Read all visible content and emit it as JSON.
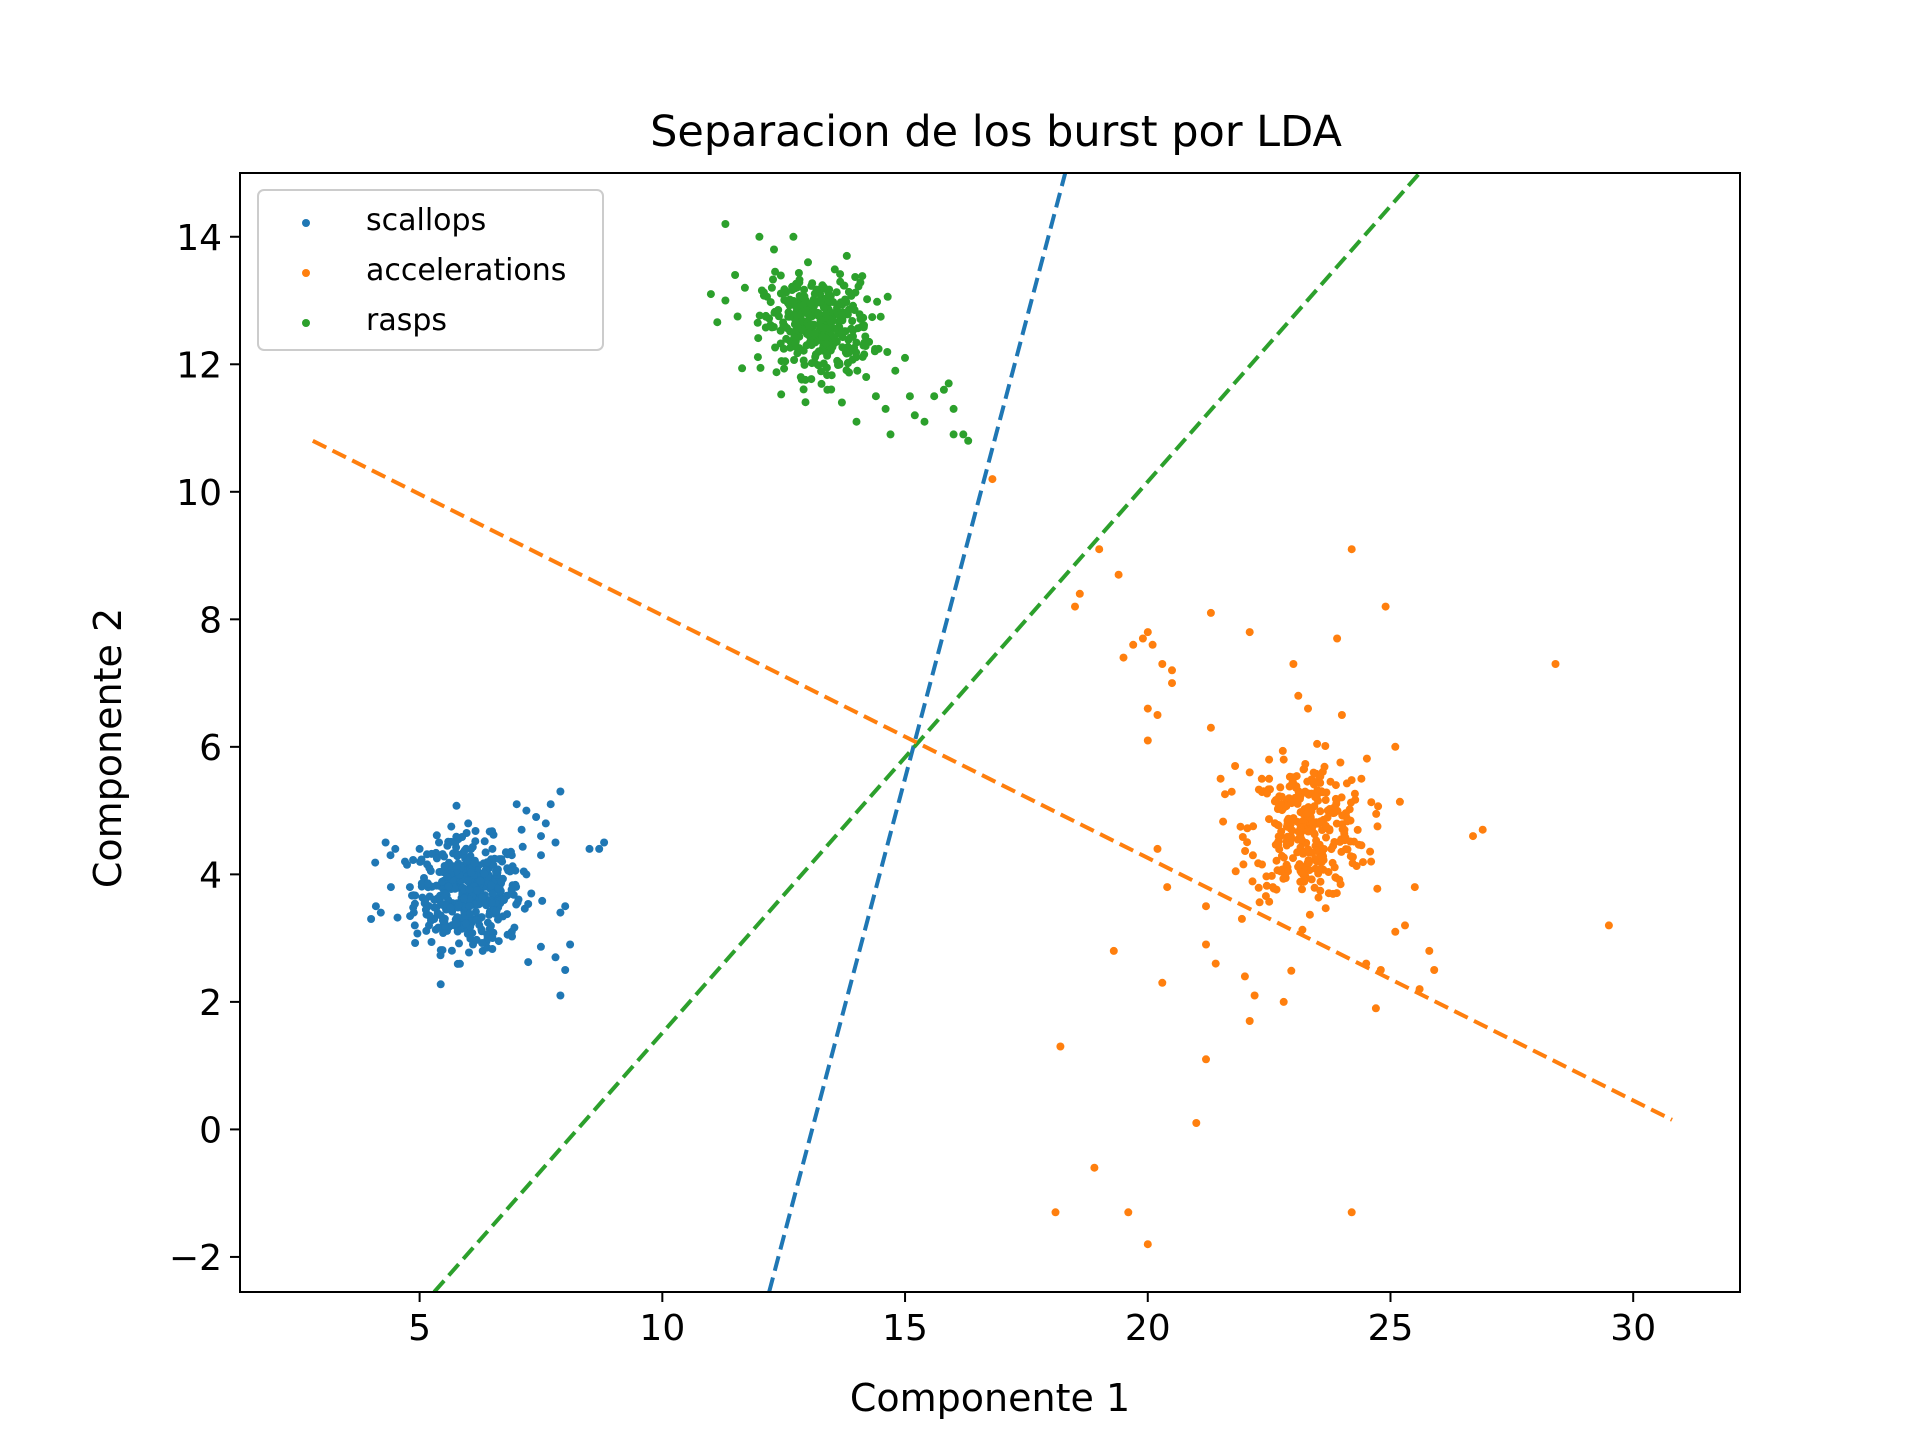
{
  "chart_data": {
    "type": "scatter",
    "title": "Separacion de los burst por LDA",
    "xlabel": "Componente 1",
    "ylabel": "Componente 2",
    "xlim": [
      1.3,
      32.2
    ],
    "ylim": [
      -2.55,
      15.0
    ],
    "xticks": [
      5,
      10,
      15,
      20,
      25,
      30
    ],
    "yticks": [
      -2,
      0,
      2,
      4,
      6,
      8,
      10,
      12,
      14
    ],
    "xtick_labels": [
      "5",
      "10",
      "15",
      "20",
      "25",
      "30"
    ],
    "ytick_labels": [
      "−2",
      "0",
      "2",
      "4",
      "6",
      "8",
      "10",
      "12",
      "14"
    ],
    "grid": false,
    "legend_position": "upper-left",
    "series": [
      {
        "name": "scallops",
        "color": "#1f77b4",
        "center": [
          6.0,
          3.7
        ],
        "spread": [
          0.55,
          0.42
        ],
        "points": [
          [
            4.0,
            3.3
          ],
          [
            4.1,
            3.5
          ],
          [
            4.2,
            3.4
          ],
          [
            4.3,
            4.5
          ],
          [
            4.4,
            4.3
          ],
          [
            4.5,
            4.4
          ],
          [
            4.7,
            4.2
          ],
          [
            4.8,
            3.8
          ],
          [
            4.9,
            3.2
          ],
          [
            5.0,
            4.4
          ],
          [
            5.1,
            3.6
          ],
          [
            5.2,
            4.1
          ],
          [
            5.3,
            3.3
          ],
          [
            5.4,
            4.5
          ],
          [
            5.5,
            3.9
          ],
          [
            6.0,
            4.8
          ],
          [
            6.1,
            2.9
          ],
          [
            6.3,
            2.8
          ],
          [
            6.4,
            3.0
          ],
          [
            6.5,
            4.4
          ],
          [
            6.7,
            4.2
          ],
          [
            6.9,
            3.1
          ],
          [
            7.0,
            5.1
          ],
          [
            7.1,
            4.7
          ],
          [
            7.2,
            5.0
          ],
          [
            7.3,
            3.7
          ],
          [
            7.4,
            4.9
          ],
          [
            7.5,
            4.6
          ],
          [
            7.6,
            4.8
          ],
          [
            7.7,
            5.1
          ],
          [
            7.8,
            4.5
          ],
          [
            7.9,
            5.3
          ],
          [
            7.9,
            3.4
          ],
          [
            8.0,
            3.5
          ],
          [
            7.9,
            2.1
          ],
          [
            8.0,
            2.5
          ],
          [
            7.8,
            2.7
          ],
          [
            8.1,
            2.9
          ],
          [
            8.5,
            4.4
          ],
          [
            8.7,
            4.4
          ],
          [
            8.8,
            4.5
          ],
          [
            7.2,
            4.0
          ],
          [
            7.5,
            4.3
          ]
        ],
        "cluster_count": 420
      },
      {
        "name": "accelerations",
        "color": "#ff7f0e",
        "center": [
          23.3,
          4.7
        ],
        "spread": [
          0.6,
          0.55
        ],
        "points": [
          [
            16.8,
            10.2
          ],
          [
            19.0,
            9.1
          ],
          [
            19.4,
            8.7
          ],
          [
            18.6,
            8.4
          ],
          [
            18.5,
            8.2
          ],
          [
            19.5,
            7.4
          ],
          [
            19.7,
            7.6
          ],
          [
            19.9,
            7.7
          ],
          [
            20.0,
            7.8
          ],
          [
            20.1,
            7.6
          ],
          [
            20.3,
            7.3
          ],
          [
            20.5,
            7.2
          ],
          [
            20.5,
            7.0
          ],
          [
            20.0,
            6.6
          ],
          [
            20.2,
            6.5
          ],
          [
            20.0,
            6.1
          ],
          [
            21.3,
            8.1
          ],
          [
            22.1,
            7.8
          ],
          [
            23.0,
            7.3
          ],
          [
            23.1,
            6.8
          ],
          [
            23.3,
            6.6
          ],
          [
            23.9,
            7.7
          ],
          [
            24.2,
            9.1
          ],
          [
            24.9,
            8.2
          ],
          [
            28.4,
            7.3
          ],
          [
            25.1,
            6.0
          ],
          [
            24.0,
            6.5
          ],
          [
            20.2,
            4.4
          ],
          [
            20.4,
            3.8
          ],
          [
            21.2,
            3.5
          ],
          [
            21.4,
            2.6
          ],
          [
            21.2,
            2.9
          ],
          [
            22.0,
            2.4
          ],
          [
            22.2,
            2.1
          ],
          [
            22.1,
            1.7
          ],
          [
            22.8,
            2.0
          ],
          [
            24.5,
            2.6
          ],
          [
            24.8,
            2.5
          ],
          [
            24.7,
            1.9
          ],
          [
            25.1,
            3.1
          ],
          [
            25.3,
            3.2
          ],
          [
            25.5,
            3.8
          ],
          [
            25.6,
            2.2
          ],
          [
            25.9,
            2.5
          ],
          [
            25.8,
            2.8
          ],
          [
            26.7,
            4.6
          ],
          [
            26.9,
            4.7
          ],
          [
            29.5,
            3.2
          ],
          [
            19.3,
            2.8
          ],
          [
            20.3,
            2.3
          ],
          [
            18.2,
            1.3
          ],
          [
            21.2,
            1.1
          ],
          [
            21.0,
            0.1
          ],
          [
            18.9,
            -0.6
          ],
          [
            18.1,
            -1.3
          ],
          [
            19.6,
            -1.3
          ],
          [
            20.0,
            -1.8
          ],
          [
            24.2,
            -1.3
          ],
          [
            22.8,
            5.8
          ],
          [
            22.5,
            5.8
          ],
          [
            22.1,
            5.6
          ],
          [
            21.8,
            5.7
          ],
          [
            21.5,
            5.5
          ],
          [
            21.3,
            6.3
          ],
          [
            24.4,
            5.5
          ],
          [
            24.6,
            4.2
          ]
        ],
        "cluster_count": 320
      },
      {
        "name": "rasps",
        "color": "#2ca02c",
        "center": [
          13.2,
          12.6
        ],
        "spread": [
          0.55,
          0.38
        ],
        "points": [
          [
            11.3,
            14.2
          ],
          [
            12.0,
            14.0
          ],
          [
            12.7,
            14.0
          ],
          [
            13.0,
            13.6
          ],
          [
            13.8,
            13.7
          ],
          [
            12.3,
            13.8
          ],
          [
            11.0,
            13.1
          ],
          [
            11.3,
            13.0
          ],
          [
            11.5,
            13.4
          ],
          [
            11.7,
            13.2
          ],
          [
            14.2,
            11.8
          ],
          [
            14.4,
            11.5
          ],
          [
            14.6,
            11.3
          ],
          [
            14.7,
            10.9
          ],
          [
            14.8,
            11.9
          ],
          [
            15.0,
            12.1
          ],
          [
            15.1,
            11.5
          ],
          [
            15.2,
            11.2
          ],
          [
            15.4,
            11.1
          ],
          [
            15.6,
            11.5
          ],
          [
            15.8,
            11.6
          ],
          [
            15.9,
            11.7
          ],
          [
            16.0,
            11.3
          ],
          [
            16.0,
            10.9
          ],
          [
            16.2,
            10.9
          ],
          [
            16.3,
            10.8
          ],
          [
            14.0,
            11.1
          ],
          [
            13.7,
            11.4
          ],
          [
            13.4,
            11.6
          ]
        ],
        "cluster_count": 360
      }
    ],
    "lines": [
      {
        "color": "#1f77b4",
        "style": "dashed",
        "x": [
          12.2,
          18.3
        ],
        "y": [
          -2.55,
          15.0
        ]
      },
      {
        "color": "#2ca02c",
        "style": "dashed",
        "x": [
          5.3,
          25.6
        ],
        "y": [
          -2.55,
          15.0
        ]
      },
      {
        "color": "#ff7f0e",
        "style": "dashed",
        "x": [
          2.8,
          30.8
        ],
        "y": [
          10.8,
          0.15
        ]
      }
    ]
  }
}
